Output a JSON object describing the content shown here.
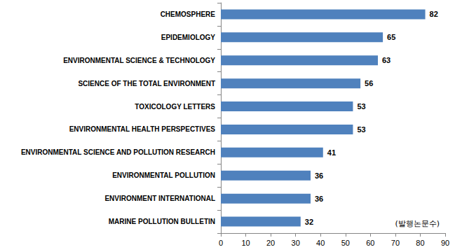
{
  "chart_data": {
    "type": "bar",
    "orientation": "horizontal",
    "categories": [
      "CHEMOSPHERE",
      "EPIDEMIOLOGY",
      "ENVIRONMENTAL SCIENCE & TECHNOLOGY",
      "SCIENCE OF THE TOTAL ENVIRONMENT",
      "TOXICOLOGY LETTERS",
      "ENVIRONMENTAL HEALTH PERSPECTIVES",
      "ENVIRONMENTAL SCIENCE AND POLLUTION RESEARCH",
      "ENVIRONMENTAL POLLUTION",
      "ENVIRONMENT INTERNATIONAL",
      "MARINE POLLUTION BULLETIN"
    ],
    "values": [
      82,
      65,
      63,
      56,
      53,
      53,
      41,
      36,
      36,
      32
    ],
    "color": "#4f81bd",
    "xlim": [
      0,
      90
    ],
    "xticks": [
      0,
      10,
      20,
      30,
      40,
      50,
      60,
      70,
      80,
      90
    ],
    "data_labels": true,
    "grid": false,
    "annotation": "(발행논문수)"
  }
}
